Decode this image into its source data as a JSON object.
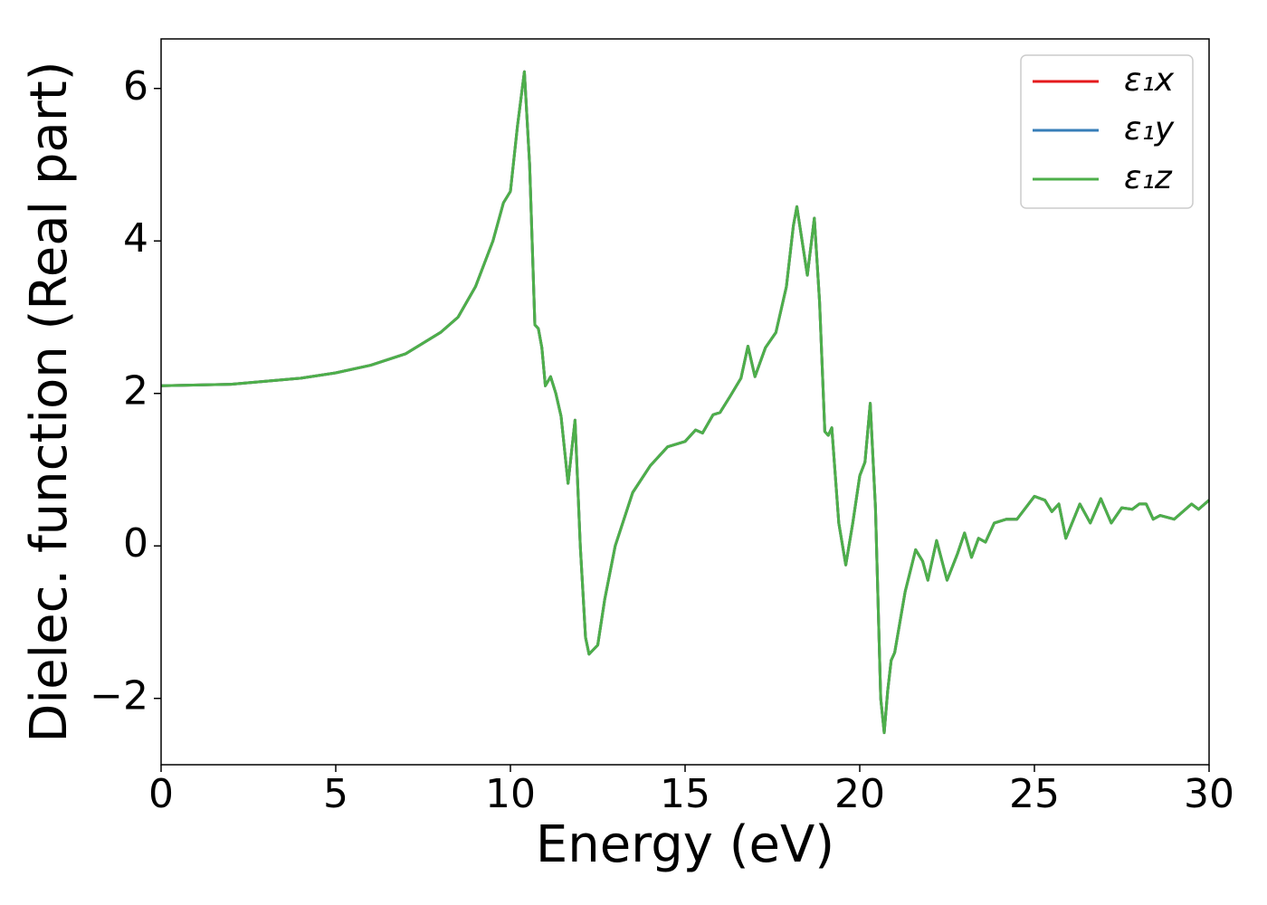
{
  "chart_data": {
    "type": "line",
    "xlabel": "Energy (eV)",
    "ylabel": "Dielec. function (Real part)",
    "x": [
      0,
      2,
      4,
      5,
      6,
      7,
      8,
      8.5,
      9,
      9.5,
      9.8,
      10.0,
      10.2,
      10.4,
      10.55,
      10.7,
      10.8,
      10.9,
      11.0,
      11.15,
      11.3,
      11.45,
      11.65,
      11.85,
      12.0,
      12.15,
      12.25,
      12.5,
      12.7,
      13.0,
      13.5,
      14.0,
      14.5,
      15.0,
      15.3,
      15.5,
      15.8,
      16.0,
      16.3,
      16.6,
      16.8,
      17.0,
      17.3,
      17.6,
      17.9,
      18.1,
      18.2,
      18.35,
      18.5,
      18.7,
      18.85,
      19.0,
      19.1,
      19.2,
      19.4,
      19.6,
      19.8,
      20.0,
      20.15,
      20.3,
      20.45,
      20.6,
      20.7,
      20.8,
      20.9,
      21.0,
      21.3,
      21.6,
      21.8,
      21.95,
      22.2,
      22.5,
      22.8,
      23.0,
      23.2,
      23.4,
      23.6,
      23.85,
      24.2,
      24.5,
      25.0,
      25.3,
      25.5,
      25.7,
      25.9,
      26.3,
      26.6,
      26.9,
      27.2,
      27.5,
      27.8,
      28.0,
      28.2,
      28.4,
      28.6,
      29.0,
      29.5,
      29.7,
      30.0
    ],
    "series": [
      {
        "name": "ε₁x",
        "color": "#e41a1c",
        "values": [
          2.1,
          2.12,
          2.2,
          2.27,
          2.37,
          2.52,
          2.8,
          3.0,
          3.4,
          4.0,
          4.5,
          4.65,
          5.5,
          6.22,
          5.0,
          2.9,
          2.85,
          2.6,
          2.1,
          2.22,
          2.0,
          1.7,
          0.82,
          1.65,
          0.0,
          -1.2,
          -1.42,
          -1.3,
          -0.7,
          0.0,
          0.7,
          1.05,
          1.3,
          1.37,
          1.52,
          1.48,
          1.72,
          1.75,
          1.97,
          2.2,
          2.62,
          2.22,
          2.6,
          2.8,
          3.4,
          4.2,
          4.45,
          4.0,
          3.55,
          4.3,
          3.2,
          1.5,
          1.45,
          1.55,
          0.3,
          -0.25,
          0.3,
          0.92,
          1.1,
          1.87,
          0.5,
          -2.0,
          -2.45,
          -1.9,
          -1.5,
          -1.4,
          -0.6,
          -0.05,
          -0.2,
          -0.45,
          0.07,
          -0.45,
          -0.1,
          0.17,
          -0.15,
          0.1,
          0.05,
          0.3,
          0.35,
          0.35,
          0.65,
          0.6,
          0.45,
          0.55,
          0.1,
          0.55,
          0.3,
          0.62,
          0.3,
          0.5,
          0.48,
          0.55,
          0.55,
          0.35,
          0.4,
          0.35,
          0.55,
          0.48,
          0.6
        ]
      },
      {
        "name": "ε₁y",
        "color": "#377eb8",
        "values": [
          2.1,
          2.12,
          2.2,
          2.27,
          2.37,
          2.52,
          2.8,
          3.0,
          3.4,
          4.0,
          4.5,
          4.65,
          5.5,
          6.22,
          5.0,
          2.9,
          2.85,
          2.6,
          2.1,
          2.22,
          2.0,
          1.7,
          0.82,
          1.65,
          0.0,
          -1.2,
          -1.42,
          -1.3,
          -0.7,
          0.0,
          0.7,
          1.05,
          1.3,
          1.37,
          1.52,
          1.48,
          1.72,
          1.75,
          1.97,
          2.2,
          2.62,
          2.22,
          2.6,
          2.8,
          3.4,
          4.2,
          4.45,
          4.0,
          3.55,
          4.3,
          3.2,
          1.5,
          1.45,
          1.55,
          0.3,
          -0.25,
          0.3,
          0.92,
          1.1,
          1.87,
          0.5,
          -2.0,
          -2.45,
          -1.9,
          -1.5,
          -1.4,
          -0.6,
          -0.05,
          -0.2,
          -0.45,
          0.07,
          -0.45,
          -0.1,
          0.17,
          -0.15,
          0.1,
          0.05,
          0.3,
          0.35,
          0.35,
          0.65,
          0.6,
          0.45,
          0.55,
          0.1,
          0.55,
          0.3,
          0.62,
          0.3,
          0.5,
          0.48,
          0.55,
          0.55,
          0.35,
          0.4,
          0.35,
          0.55,
          0.48,
          0.6
        ]
      },
      {
        "name": "ε₁z",
        "color": "#4daf4a",
        "values": [
          2.1,
          2.12,
          2.2,
          2.27,
          2.37,
          2.52,
          2.8,
          3.0,
          3.4,
          4.0,
          4.5,
          4.65,
          5.5,
          6.22,
          5.0,
          2.9,
          2.85,
          2.6,
          2.1,
          2.22,
          2.0,
          1.7,
          0.82,
          1.65,
          0.0,
          -1.2,
          -1.42,
          -1.3,
          -0.7,
          0.0,
          0.7,
          1.05,
          1.3,
          1.37,
          1.52,
          1.48,
          1.72,
          1.75,
          1.97,
          2.2,
          2.62,
          2.22,
          2.6,
          2.8,
          3.4,
          4.2,
          4.45,
          4.0,
          3.55,
          4.3,
          3.2,
          1.5,
          1.45,
          1.55,
          0.3,
          -0.25,
          0.3,
          0.92,
          1.1,
          1.87,
          0.5,
          -2.0,
          -2.45,
          -1.9,
          -1.5,
          -1.4,
          -0.6,
          -0.05,
          -0.2,
          -0.45,
          0.07,
          -0.45,
          -0.1,
          0.17,
          -0.15,
          0.1,
          0.05,
          0.3,
          0.35,
          0.35,
          0.65,
          0.6,
          0.45,
          0.55,
          0.1,
          0.55,
          0.3,
          0.62,
          0.3,
          0.5,
          0.48,
          0.55,
          0.55,
          0.35,
          0.4,
          0.35,
          0.55,
          0.48,
          0.6
        ]
      }
    ],
    "xlim": [
      0,
      30
    ],
    "xticks": [
      0,
      5,
      10,
      15,
      20,
      25,
      30
    ],
    "ylim": [
      -2.87,
      6.65
    ],
    "yticks": [
      {
        "value": -2,
        "label": "−2"
      },
      0,
      2,
      4,
      6
    ],
    "grid": false,
    "legend": "upper right"
  }
}
